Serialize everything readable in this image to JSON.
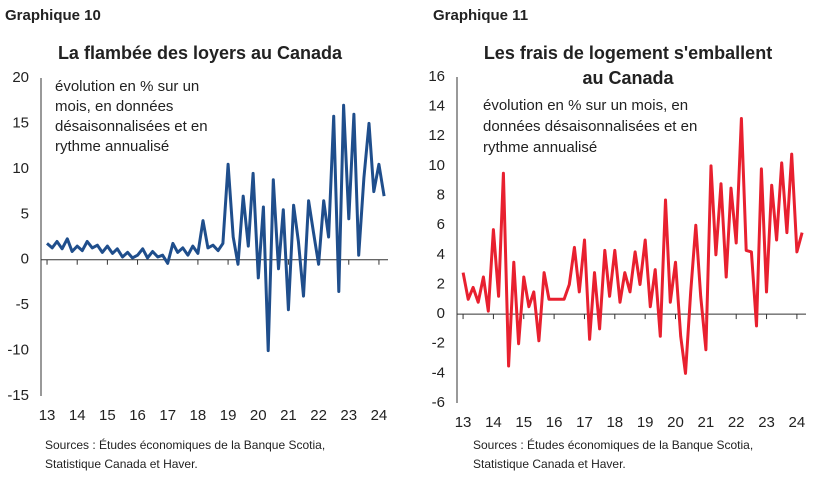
{
  "chart_data": [
    {
      "type": "line",
      "label": "Graphique 10",
      "title": [
        "La flambée des loyers au Canada"
      ],
      "annotation": [
        "évolution en % sur un",
        "mois, en données",
        "désaisonnalisées et en",
        "rythme annualisé"
      ],
      "sources": [
        "Sources : Études économiques de la Banque Scotia,",
        "Statistique Canada et Haver."
      ],
      "color": "#1f4e8c",
      "xlim": [
        12.8,
        24.3
      ],
      "xticks": [
        13,
        14,
        15,
        16,
        17,
        18,
        19,
        20,
        21,
        22,
        23,
        24
      ],
      "ylim": [
        -15,
        20
      ],
      "yticks": [
        -15,
        -10,
        -5,
        0,
        5,
        10,
        15,
        20
      ],
      "x": [
        13,
        13.17,
        13.33,
        13.5,
        13.67,
        13.83,
        14,
        14.17,
        14.33,
        14.5,
        14.67,
        14.83,
        15,
        15.17,
        15.33,
        15.5,
        15.67,
        15.83,
        16,
        16.17,
        16.33,
        16.5,
        16.67,
        16.83,
        17,
        17.17,
        17.33,
        17.5,
        17.67,
        17.83,
        18,
        18.17,
        18.33,
        18.5,
        18.67,
        18.83,
        19,
        19.17,
        19.33,
        19.5,
        19.67,
        19.83,
        20,
        20.17,
        20.33,
        20.5,
        20.67,
        20.83,
        21,
        21.17,
        21.33,
        21.5,
        21.67,
        21.83,
        22,
        22.17,
        22.33,
        22.5,
        22.67,
        22.83,
        23,
        23.17,
        23.33,
        23.5,
        23.67,
        23.83,
        24,
        24.17
      ],
      "values": [
        1.8,
        1.3,
        2.0,
        1.2,
        2.3,
        0.9,
        1.5,
        1.0,
        2.0,
        1.3,
        1.6,
        0.8,
        1.5,
        0.7,
        1.2,
        0.3,
        0.8,
        0.2,
        0.5,
        1.2,
        0.2,
        0.9,
        0.3,
        0.5,
        -0.4,
        1.8,
        0.8,
        1.3,
        0.5,
        1.5,
        0.7,
        4.3,
        1.3,
        1.6,
        1.0,
        1.8,
        10.5,
        2.5,
        -0.5,
        7.0,
        1.5,
        9.5,
        -2,
        5.8,
        -10,
        8.8,
        -1,
        5.5,
        -5.5,
        6.0,
        2.0,
        -4,
        6.5,
        3,
        -0.5,
        6.5,
        2.5,
        15.8,
        -3.5,
        17,
        4.5,
        16,
        0.5,
        9,
        15,
        7.5,
        10.5,
        7
      ]
    },
    {
      "type": "line",
      "label": "Graphique 11",
      "title": [
        "Les frais de logement s'emballent",
        "au Canada"
      ],
      "annotation": [
        "évolution en % sur un mois, en",
        "données désaisonnalisées et en",
        "rythme annualisé"
      ],
      "sources": [
        "Sources : Études économiques de la Banque Scotia,",
        "Statistique Canada et Haver."
      ],
      "color": "#e8202f",
      "xlim": [
        12.8,
        24.3
      ],
      "xticks": [
        13,
        14,
        15,
        16,
        17,
        18,
        19,
        20,
        21,
        22,
        23,
        24
      ],
      "ylim": [
        -6,
        16
      ],
      "yticks": [
        -6,
        -4,
        -2,
        0,
        2,
        4,
        6,
        8,
        10,
        12,
        14,
        16
      ],
      "x": [
        13,
        13.17,
        13.33,
        13.5,
        13.67,
        13.83,
        14,
        14.17,
        14.33,
        14.5,
        14.67,
        14.83,
        15,
        15.17,
        15.33,
        15.5,
        15.67,
        15.83,
        16,
        16.17,
        16.33,
        16.5,
        16.67,
        16.83,
        17,
        17.17,
        17.33,
        17.5,
        17.67,
        17.83,
        18,
        18.17,
        18.33,
        18.5,
        18.67,
        18.83,
        19,
        19.17,
        19.33,
        19.5,
        19.67,
        19.83,
        20,
        20.17,
        20.33,
        20.5,
        20.67,
        20.83,
        21,
        21.17,
        21.33,
        21.5,
        21.67,
        21.83,
        22,
        22.17,
        22.33,
        22.5,
        22.67,
        22.83,
        23,
        23.17,
        23.33,
        23.5,
        23.67,
        23.83,
        24,
        24.17
      ],
      "values": [
        2.8,
        1.0,
        1.8,
        0.8,
        2.5,
        0.2,
        5.7,
        1.2,
        9.5,
        -3.5,
        3.5,
        -2.0,
        2.5,
        0.5,
        1.5,
        -1.8,
        2.8,
        1.0,
        1.0,
        1.0,
        1.0,
        2.0,
        4.5,
        1.5,
        5.0,
        -1.7,
        2.8,
        -1.0,
        4.3,
        1.2,
        4.3,
        0.8,
        2.8,
        1.5,
        4.2,
        2.0,
        5.0,
        0.5,
        3.0,
        -1.5,
        7.7,
        0.8,
        3.5,
        -1.5,
        -4.0,
        1.5,
        6.0,
        1.2,
        -2.4,
        10.0,
        4.0,
        8.8,
        2.5,
        8.5,
        4.8,
        13.2,
        4.3,
        4.2,
        -0.8,
        9.8,
        1.5,
        8.7,
        5.0,
        10.2,
        5.5,
        10.8,
        4.2,
        5.5
      ]
    }
  ]
}
